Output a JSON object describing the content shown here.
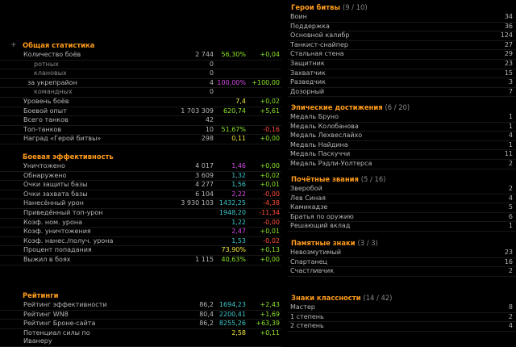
{
  "left": {
    "sections": [
      {
        "title": "Общая статистика",
        "rows": [
          {
            "label": "Количество боёв",
            "v1": "2 744",
            "v2": "56,30%",
            "v3": "+0,04",
            "c2": "g",
            "c3": "g",
            "indent": ""
          },
          {
            "label": "ротных",
            "v1": "0",
            "v2": "",
            "v3": "",
            "indent": "sub"
          },
          {
            "label": "клановых",
            "v1": "0",
            "v2": "",
            "v3": "",
            "indent": "sub"
          },
          {
            "label": "за укрепрайон",
            "v1": "4",
            "v2": "100,00%",
            "v3": "+100,00",
            "c2": "p",
            "c3": "g",
            "indent": "mid"
          },
          {
            "label": "командных",
            "v1": "0",
            "v2": "",
            "v3": "",
            "indent": "sub"
          },
          {
            "label": "Уровень боёв",
            "v1": "",
            "v2": "7,4",
            "v3": "+0,02",
            "c2": "y",
            "c3": "g",
            "indent": ""
          },
          {
            "label": "Боевой опыт",
            "v1": "1 703 309",
            "v2": "620,74",
            "v3": "+5,61",
            "c2": "g",
            "c3": "g",
            "indent": ""
          },
          {
            "label": "Всего танков",
            "v1": "42",
            "v2": "",
            "v3": "",
            "indent": ""
          },
          {
            "label": "Топ-танков",
            "v1": "10",
            "v2": "51,67%",
            "v3": "-0,16",
            "c2": "g",
            "c3": "r",
            "indent": ""
          },
          {
            "label": "Наград «Герой битвы»",
            "v1": "298",
            "v2": "0,11",
            "v3": "+0,00",
            "c2": "y",
            "c3": "g",
            "indent": ""
          }
        ]
      },
      {
        "title": "Боевая эффективность",
        "rows": [
          {
            "label": "Уничтожено",
            "v1": "4 017",
            "v2": "1,46",
            "v3": "+0,00",
            "c2": "p",
            "c3": "g",
            "indent": ""
          },
          {
            "label": "Обнаружено",
            "v1": "3 609",
            "v2": "1,32",
            "v3": "+0,02",
            "c2": "c",
            "c3": "g",
            "indent": ""
          },
          {
            "label": "Очки защиты базы",
            "v1": "4 277",
            "v2": "1,56",
            "v3": "+0,01",
            "c2": "c",
            "c3": "g",
            "indent": ""
          },
          {
            "label": "Очки захвата базы",
            "v1": "6 104",
            "v2": "2,22",
            "v3": "-0,00",
            "c2": "p",
            "c3": "r",
            "indent": ""
          },
          {
            "label": "Нанесённый урон",
            "v1": "3 930 103",
            "v2": "1432,25",
            "v3": "-4,38",
            "c2": "c",
            "c3": "r",
            "indent": ""
          },
          {
            "label": "Приведённый топ-урон",
            "v1": "",
            "v2": "1948,20",
            "v3": "-11,34",
            "c2": "c",
            "c3": "r",
            "indent": ""
          },
          {
            "label": "Коэф. ном. урона",
            "v1": "",
            "v2": "1,22",
            "v3": "-0,00",
            "c2": "c",
            "c3": "r",
            "indent": ""
          },
          {
            "label": "Коэф. уничтожения",
            "v1": "",
            "v2": "2,47",
            "v3": "+0,01",
            "c2": "p",
            "c3": "g",
            "indent": ""
          },
          {
            "label": "Коэф. нанес./получ. урона",
            "v1": "",
            "v2": "1,53",
            "v3": "-0,02",
            "c2": "c",
            "c3": "r",
            "indent": ""
          },
          {
            "label": "Процент попадания",
            "v1": "",
            "v2": "73,90%",
            "v3": "+0,13",
            "c2": "y",
            "c3": "g",
            "indent": ""
          },
          {
            "label": "Выжил в боях",
            "v1": "1 115",
            "v2": "40,63%",
            "v3": "+0,00",
            "c2": "g",
            "c3": "g",
            "indent": ""
          }
        ]
      },
      {
        "title": "Рейтинги",
        "rows": [
          {
            "label": "Рейтинг эффективности",
            "v1": "86,2",
            "v2": "1694,23",
            "v3": "+2,43",
            "c2": "c",
            "c3": "g",
            "indent": ""
          },
          {
            "label": "Рейтинг WN8",
            "v1": "80,4",
            "v2": "2200,41",
            "v3": "+1,69",
            "c2": "c",
            "c3": "g",
            "indent": ""
          },
          {
            "label": "Рейтинг Броне-сайта",
            "v1": "86,2",
            "v2": "8255,26",
            "v3": "+63,39",
            "c2": "c",
            "c3": "g",
            "indent": ""
          },
          {
            "label": "Потенциал силы по",
            "label2": "Иванеру",
            "v1": "",
            "v2": "2,58",
            "v3": "+0,11",
            "c2": "y",
            "c3": "g",
            "indent": ""
          }
        ]
      }
    ]
  },
  "right": {
    "sections": [
      {
        "title": "Герои битвы",
        "count": "(9 / 10)",
        "rows": [
          {
            "label": "Воин",
            "value": "34"
          },
          {
            "label": "Поддержка",
            "value": "36"
          },
          {
            "label": "Основной калибр",
            "value": "124"
          },
          {
            "label": "Танкист-снайпер",
            "value": "27"
          },
          {
            "label": "Стальная стена",
            "value": "29"
          },
          {
            "label": "Защитник",
            "value": "23"
          },
          {
            "label": "Захватчик",
            "value": "15"
          },
          {
            "label": "Разведчик",
            "value": "3"
          },
          {
            "label": "Дозорный",
            "value": "7"
          }
        ]
      },
      {
        "title": "Эпические достижения",
        "count": "(6 / 20)",
        "rows": [
          {
            "label": "Медаль Бруно",
            "value": "1"
          },
          {
            "label": "Медаль Колобанова",
            "value": "1"
          },
          {
            "label": "Медаль Лехвеслайхо",
            "value": "4"
          },
          {
            "label": "Медаль Найдина",
            "value": "1"
          },
          {
            "label": "Медаль Паскуччи",
            "value": "11"
          },
          {
            "label": "Медаль Рэдли-Уолтерса",
            "value": "2"
          }
        ]
      },
      {
        "title": "Почётные звания",
        "count": "(5 / 16)",
        "rows": [
          {
            "label": "Зверобой",
            "value": "2"
          },
          {
            "label": "Лев Синая",
            "value": "4"
          },
          {
            "label": "Камикадзе",
            "value": "5"
          },
          {
            "label": "Братья по оружию",
            "value": "6"
          },
          {
            "label": "Решающий вклад",
            "value": "1"
          }
        ]
      },
      {
        "title": "Памятные знаки",
        "count": "(3 / 3)",
        "rows": [
          {
            "label": "Невозмутимый",
            "value": "23"
          },
          {
            "label": "Спартанец",
            "value": "16"
          },
          {
            "label": "Счастливчик",
            "value": "2"
          }
        ]
      },
      {
        "title": "Знаки классности",
        "count": "(14 / 42)",
        "rows": [
          {
            "label": "Мастер",
            "value": "8"
          },
          {
            "label": "1 степень",
            "value": "2"
          },
          {
            "label": "2 степень",
            "value": "4"
          }
        ]
      }
    ]
  },
  "ui": {
    "expand_symbol": "+"
  }
}
